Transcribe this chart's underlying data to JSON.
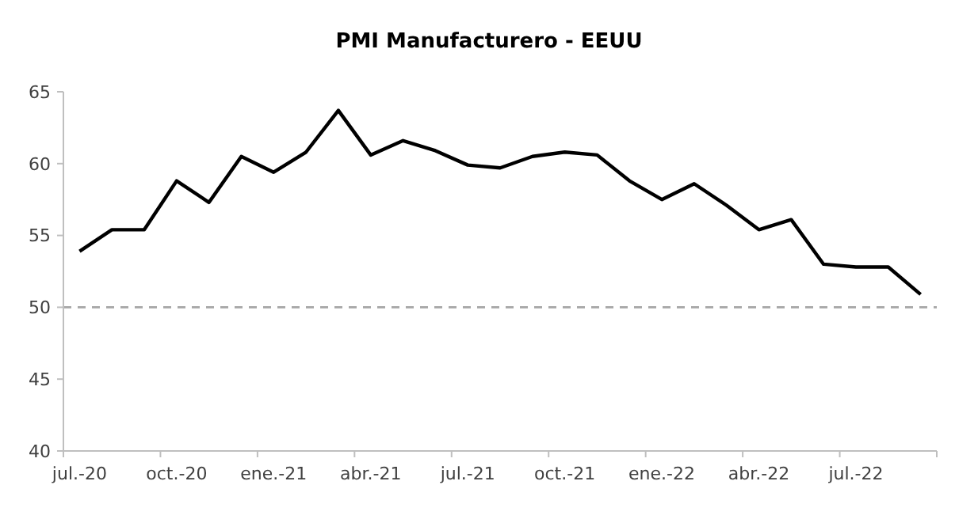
{
  "chart_data": {
    "type": "line",
    "title": "PMI Manufacturero - EEUU",
    "categories": [
      "jul.-20",
      null,
      null,
      "oct.-20",
      null,
      null,
      "ene.-21",
      null,
      null,
      "abr.-21",
      null,
      null,
      "jul.-21",
      null,
      null,
      "oct.-21",
      null,
      null,
      "ene.-22",
      null,
      null,
      "abr.-22",
      null,
      null,
      "jul.-22",
      null,
      null
    ],
    "series": [
      {
        "color": "#000000",
        "values": [
          53.9,
          55.4,
          55.4,
          58.8,
          57.3,
          60.5,
          59.4,
          60.8,
          63.7,
          60.6,
          61.6,
          60.9,
          59.9,
          59.7,
          60.5,
          60.8,
          60.6,
          58.8,
          57.5,
          58.6,
          57.1,
          55.4,
          56.1,
          53.0,
          52.8,
          52.8,
          50.9
        ]
      }
    ],
    "ylim": [
      40,
      65
    ],
    "yticks": [
      40,
      45,
      50,
      55,
      60,
      65
    ],
    "ref_lines": [
      {
        "axis": "y",
        "value": 50,
        "color": "#a6a6a6",
        "line_style": "dashed"
      }
    ],
    "line_style": "solid",
    "marker": "none",
    "grid": false
  }
}
